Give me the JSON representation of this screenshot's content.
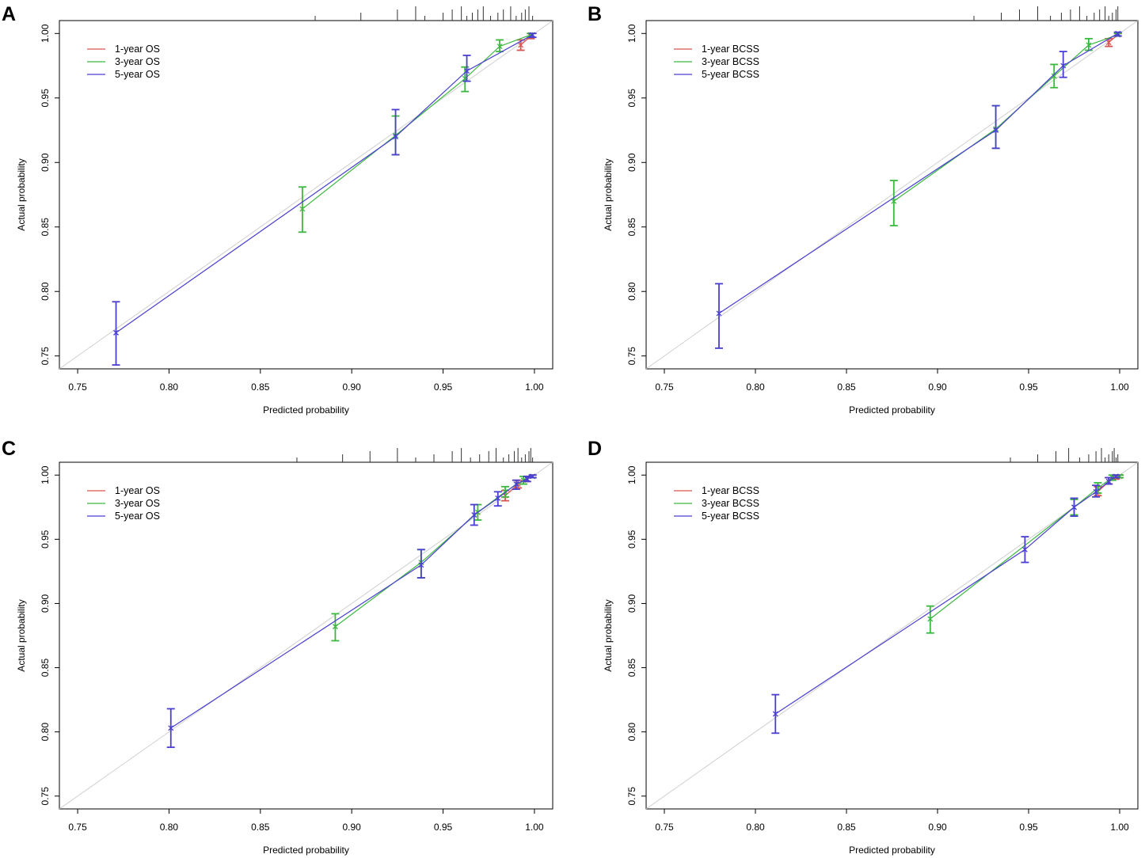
{
  "colors": {
    "1-year": "#d9534f",
    "3-year": "#3cb840",
    "5-year": "#4a3fd0",
    "ideal": "#cfcfcf",
    "axis": "#000000"
  },
  "chart_data": [
    {
      "panel": "A",
      "type": "line",
      "xlabel": "Predicted probability",
      "ylabel": "Actual probability",
      "xlim": [
        0.74,
        1.01
      ],
      "ylim": [
        0.74,
        1.01
      ],
      "xticks": [
        "0.75",
        "0.80",
        "0.85",
        "0.90",
        "0.95",
        "1.00"
      ],
      "yticks": [
        "0.75",
        "0.80",
        "0.85",
        "0.90",
        "0.95",
        "1.00"
      ],
      "legend_position": "top-left",
      "rug": [
        0.88,
        0.905,
        0.925,
        0.935,
        0.94,
        0.95,
        0.955,
        0.96,
        0.963,
        0.966,
        0.969,
        0.972,
        0.976,
        0.98,
        0.983,
        0.987,
        0.99,
        0.993,
        0.995,
        0.997,
        0.999
      ],
      "series": [
        {
          "name": "1-year OS",
          "key": "1-year",
          "points": [
            {
              "x": 0.9925,
              "y": 0.991,
              "lo": 0.987,
              "hi": 0.995
            },
            {
              "x": 0.998,
              "y": 0.998,
              "lo": 0.996,
              "hi": 1.0
            }
          ]
        },
        {
          "name": "3-year OS",
          "key": "3-year",
          "points": [
            {
              "x": 0.873,
              "y": 0.864,
              "lo": 0.846,
              "hi": 0.881
            },
            {
              "x": 0.924,
              "y": 0.921,
              "lo": 0.906,
              "hi": 0.936
            },
            {
              "x": 0.962,
              "y": 0.965,
              "lo": 0.955,
              "hi": 0.974
            },
            {
              "x": 0.981,
              "y": 0.99,
              "lo": 0.986,
              "hi": 0.995
            },
            {
              "x": 0.998,
              "y": 0.999,
              "lo": 0.997,
              "hi": 1.0
            }
          ]
        },
        {
          "name": "5-year OS",
          "key": "5-year",
          "points": [
            {
              "x": 0.771,
              "y": 0.768,
              "lo": 0.743,
              "hi": 0.792
            },
            {
              "x": 0.924,
              "y": 0.92,
              "lo": 0.906,
              "hi": 0.941
            },
            {
              "x": 0.963,
              "y": 0.971,
              "lo": 0.963,
              "hi": 0.983
            },
            {
              "x": 0.999,
              "y": 0.999,
              "lo": 0.997,
              "hi": 1.0
            }
          ]
        }
      ]
    },
    {
      "panel": "B",
      "type": "line",
      "xlabel": "Predicted probability",
      "ylabel": "Actual probability",
      "xlim": [
        0.74,
        1.01
      ],
      "ylim": [
        0.74,
        1.01
      ],
      "xticks": [
        "0.75",
        "0.80",
        "0.85",
        "0.90",
        "0.95",
        "1.00"
      ],
      "yticks": [
        "0.75",
        "0.80",
        "0.85",
        "0.90",
        "0.95",
        "1.00"
      ],
      "legend_position": "top-left",
      "rug": [
        0.92,
        0.935,
        0.945,
        0.955,
        0.962,
        0.968,
        0.973,
        0.978,
        0.982,
        0.986,
        0.989,
        0.992,
        0.994,
        0.996,
        0.998,
        0.999
      ],
      "series": [
        {
          "name": "1-year BCSS",
          "key": "1-year",
          "points": [
            {
              "x": 0.994,
              "y": 0.993,
              "lo": 0.99,
              "hi": 0.996
            },
            {
              "x": 0.999,
              "y": 0.999,
              "lo": 0.998,
              "hi": 1.0
            }
          ]
        },
        {
          "name": "3-year BCSS",
          "key": "3-year",
          "points": [
            {
              "x": 0.876,
              "y": 0.87,
              "lo": 0.851,
              "hi": 0.886
            },
            {
              "x": 0.932,
              "y": 0.926,
              "lo": 0.911,
              "hi": 0.944
            },
            {
              "x": 0.964,
              "y": 0.967,
              "lo": 0.958,
              "hi": 0.976
            },
            {
              "x": 0.983,
              "y": 0.991,
              "lo": 0.987,
              "hi": 0.996
            },
            {
              "x": 0.999,
              "y": 0.999,
              "lo": 0.998,
              "hi": 1.0
            }
          ]
        },
        {
          "name": "5-year BCSS",
          "key": "5-year",
          "points": [
            {
              "x": 0.78,
              "y": 0.783,
              "lo": 0.756,
              "hi": 0.806
            },
            {
              "x": 0.932,
              "y": 0.925,
              "lo": 0.911,
              "hi": 0.944
            },
            {
              "x": 0.969,
              "y": 0.975,
              "lo": 0.966,
              "hi": 0.986
            },
            {
              "x": 0.999,
              "y": 1.0,
              "lo": 0.998,
              "hi": 1.001
            }
          ]
        }
      ]
    },
    {
      "panel": "C",
      "type": "line",
      "xlabel": "Predicted probability",
      "ylabel": "Actual probability",
      "xlim": [
        0.74,
        1.01
      ],
      "ylim": [
        0.74,
        1.01
      ],
      "xticks": [
        "0.75",
        "0.80",
        "0.85",
        "0.90",
        "0.95",
        "1.00"
      ],
      "yticks": [
        "0.75",
        "0.80",
        "0.85",
        "0.90",
        "0.95",
        "1.00"
      ],
      "legend_position": "top-left",
      "rug": [
        0.87,
        0.895,
        0.91,
        0.925,
        0.935,
        0.945,
        0.955,
        0.96,
        0.965,
        0.97,
        0.975,
        0.979,
        0.983,
        0.986,
        0.989,
        0.991,
        0.993,
        0.995,
        0.997,
        0.998,
        0.999
      ],
      "series": [
        {
          "name": "1-year OS",
          "key": "1-year",
          "points": [
            {
              "x": 0.984,
              "y": 0.984,
              "lo": 0.98,
              "hi": 0.988
            },
            {
              "x": 0.991,
              "y": 0.993,
              "lo": 0.99,
              "hi": 0.996
            },
            {
              "x": 0.996,
              "y": 0.997,
              "lo": 0.995,
              "hi": 0.999
            },
            {
              "x": 0.999,
              "y": 0.999,
              "lo": 0.998,
              "hi": 1.0
            }
          ]
        },
        {
          "name": "3-year OS",
          "key": "3-year",
          "points": [
            {
              "x": 0.891,
              "y": 0.882,
              "lo": 0.871,
              "hi": 0.892
            },
            {
              "x": 0.938,
              "y": 0.932,
              "lo": 0.92,
              "hi": 0.942
            },
            {
              "x": 0.969,
              "y": 0.971,
              "lo": 0.965,
              "hi": 0.977
            },
            {
              "x": 0.984,
              "y": 0.987,
              "lo": 0.983,
              "hi": 0.991
            },
            {
              "x": 0.994,
              "y": 0.996,
              "lo": 0.993,
              "hi": 0.999
            },
            {
              "x": 0.999,
              "y": 0.999,
              "lo": 0.998,
              "hi": 1.0
            }
          ]
        },
        {
          "name": "5-year OS",
          "key": "5-year",
          "points": [
            {
              "x": 0.801,
              "y": 0.803,
              "lo": 0.788,
              "hi": 0.818
            },
            {
              "x": 0.938,
              "y": 0.93,
              "lo": 0.92,
              "hi": 0.942
            },
            {
              "x": 0.967,
              "y": 0.969,
              "lo": 0.961,
              "hi": 0.977
            },
            {
              "x": 0.98,
              "y": 0.982,
              "lo": 0.976,
              "hi": 0.987
            },
            {
              "x": 0.99,
              "y": 0.993,
              "lo": 0.989,
              "hi": 0.996
            },
            {
              "x": 0.996,
              "y": 0.997,
              "lo": 0.995,
              "hi": 0.999
            },
            {
              "x": 0.999,
              "y": 0.999,
              "lo": 0.998,
              "hi": 1.0
            }
          ]
        }
      ]
    },
    {
      "panel": "D",
      "type": "line",
      "xlabel": "Predicted probability",
      "ylabel": "Actual probability",
      "xlim": [
        0.74,
        1.01
      ],
      "ylim": [
        0.74,
        1.01
      ],
      "xticks": [
        "0.75",
        "0.80",
        "0.85",
        "0.90",
        "0.95",
        "1.00"
      ],
      "yticks": [
        "0.75",
        "0.80",
        "0.85",
        "0.90",
        "0.95",
        "1.00"
      ],
      "legend_position": "top-left",
      "rug": [
        0.94,
        0.955,
        0.965,
        0.972,
        0.978,
        0.983,
        0.987,
        0.99,
        0.992,
        0.994,
        0.996,
        0.997,
        0.998,
        0.999
      ],
      "series": [
        {
          "name": "1-year BCSS",
          "key": "1-year",
          "points": [
            {
              "x": 0.988,
              "y": 0.987,
              "lo": 0.984,
              "hi": 0.991
            },
            {
              "x": 0.994,
              "y": 0.995,
              "lo": 0.993,
              "hi": 0.998
            },
            {
              "x": 0.998,
              "y": 0.998,
              "lo": 0.997,
              "hi": 1.0
            },
            {
              "x": 1.0,
              "y": 0.999,
              "lo": 0.998,
              "hi": 1.0
            }
          ]
        },
        {
          "name": "3-year BCSS",
          "key": "3-year",
          "points": [
            {
              "x": 0.896,
              "y": 0.888,
              "lo": 0.877,
              "hi": 0.898
            },
            {
              "x": 0.975,
              "y": 0.975,
              "lo": 0.969,
              "hi": 0.981
            },
            {
              "x": 0.988,
              "y": 0.99,
              "lo": 0.986,
              "hi": 0.994
            },
            {
              "x": 0.996,
              "y": 0.998,
              "lo": 0.996,
              "hi": 1.0
            },
            {
              "x": 1.0,
              "y": 0.999,
              "lo": 0.998,
              "hi": 1.0
            }
          ]
        },
        {
          "name": "5-year BCSS",
          "key": "5-year",
          "points": [
            {
              "x": 0.811,
              "y": 0.814,
              "lo": 0.799,
              "hi": 0.829
            },
            {
              "x": 0.948,
              "y": 0.942,
              "lo": 0.932,
              "hi": 0.952
            },
            {
              "x": 0.975,
              "y": 0.975,
              "lo": 0.968,
              "hi": 0.982
            },
            {
              "x": 0.987,
              "y": 0.987,
              "lo": 0.983,
              "hi": 0.992
            },
            {
              "x": 0.994,
              "y": 0.995,
              "lo": 0.993,
              "hi": 0.998
            },
            {
              "x": 0.998,
              "y": 0.999,
              "lo": 0.998,
              "hi": 1.0
            }
          ]
        }
      ]
    }
  ]
}
